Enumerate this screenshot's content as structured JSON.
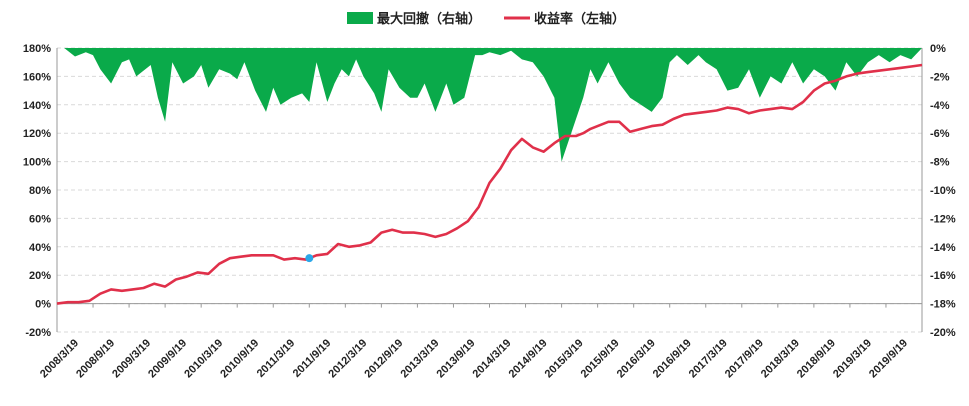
{
  "chart_data": {
    "type": "line+area",
    "legend": [
      {
        "name": "最大回撤（右轴）",
        "color": "#0AAA4A",
        "kind": "area"
      },
      {
        "name": "收益率（左轴）",
        "color": "#E0304A",
        "kind": "line"
      }
    ],
    "legend_position": "top-center",
    "grid": {
      "horizontal": true,
      "style": "dashed"
    },
    "left_axis": {
      "ylim": [
        -20,
        180
      ],
      "ticks": [
        "-20%",
        "0%",
        "20%",
        "40%",
        "60%",
        "80%",
        "100%",
        "120%",
        "140%",
        "160%",
        "180%"
      ]
    },
    "right_axis": {
      "ylim": [
        -20,
        0
      ],
      "ticks": [
        "0%",
        "-2%",
        "-4%",
        "-6%",
        "-8%",
        "-10%",
        "-12%",
        "-14%",
        "-16%",
        "-18%",
        "-20%"
      ]
    },
    "x_categories": [
      "2008/3/19",
      "2008/9/19",
      "2009/3/19",
      "2009/9/19",
      "2010/3/19",
      "2010/9/19",
      "2011/3/19",
      "2011/9/19",
      "2012/3/19",
      "2012/9/19",
      "2013/3/19",
      "2013/9/19",
      "2014/3/19",
      "2014/9/19",
      "2015/3/19",
      "2015/9/19",
      "2016/3/19",
      "2016/9/19",
      "2017/3/19",
      "2017/9/19",
      "2018/3/19",
      "2018/9/19",
      "2019/3/19",
      "2019/9/19"
    ],
    "return_series": {
      "name": "收益率（左轴）",
      "axis": "left",
      "x": [
        0,
        0.3,
        0.6,
        0.9,
        1.2,
        1.5,
        1.8,
        2.1,
        2.4,
        2.7,
        3.0,
        3.3,
        3.6,
        3.9,
        4.2,
        4.5,
        4.8,
        5.1,
        5.4,
        5.7,
        6.0,
        6.3,
        6.6,
        6.9,
        7.0,
        7.2,
        7.5,
        7.8,
        8.1,
        8.4,
        8.7,
        9.0,
        9.3,
        9.6,
        9.9,
        10.2,
        10.5,
        10.8,
        11.1,
        11.4,
        11.7,
        12.0,
        12.3,
        12.6,
        12.9,
        13.2,
        13.5,
        13.8,
        14.1,
        14.4,
        14.6,
        14.8,
        15.0,
        15.3,
        15.6,
        15.9,
        16.2,
        16.5,
        16.8,
        17.1,
        17.4,
        17.7,
        18.0,
        18.3,
        18.6,
        18.9,
        19.2,
        19.5,
        19.8,
        20.1,
        20.4,
        20.7,
        21.0,
        21.3,
        21.6,
        21.9,
        22.2,
        22.5,
        22.8,
        23.1,
        23.4,
        23.7,
        24.0
      ],
      "y": [
        0,
        1,
        1,
        2,
        7,
        10,
        9,
        10,
        11,
        14,
        12,
        17,
        19,
        22,
        21,
        28,
        32,
        33,
        34,
        34,
        34,
        31,
        32,
        31,
        32,
        34,
        35,
        42,
        40,
        41,
        43,
        50,
        52,
        50,
        50,
        49,
        47,
        49,
        53,
        58,
        68,
        85,
        95,
        108,
        116,
        110,
        107,
        113,
        118,
        118,
        120,
        123,
        125,
        128,
        128,
        121,
        123,
        125,
        126,
        130,
        133,
        134,
        135,
        136,
        138,
        137,
        134,
        136,
        137,
        138,
        137,
        142,
        150,
        155,
        157,
        160,
        162,
        163,
        164,
        165,
        166,
        167,
        168
      ]
    },
    "drawdown_series": {
      "name": "最大回撤（右轴）",
      "axis": "right",
      "x": [
        0,
        0.2,
        0.5,
        0.8,
        1.0,
        1.2,
        1.5,
        1.8,
        2.0,
        2.2,
        2.6,
        2.8,
        3.0,
        3.2,
        3.5,
        3.8,
        4.0,
        4.2,
        4.5,
        4.8,
        5.0,
        5.2,
        5.5,
        5.8,
        6.0,
        6.2,
        6.5,
        6.8,
        7.0,
        7.2,
        7.5,
        7.7,
        7.9,
        8.1,
        8.3,
        8.5,
        8.8,
        9.0,
        9.2,
        9.5,
        9.8,
        10.0,
        10.2,
        10.5,
        10.8,
        11.0,
        11.3,
        11.6,
        11.8,
        12.0,
        12.3,
        12.6,
        12.9,
        13.2,
        13.5,
        13.8,
        14.0,
        14.2,
        14.4,
        14.6,
        14.8,
        15.0,
        15.3,
        15.6,
        15.9,
        16.2,
        16.5,
        16.8,
        17.0,
        17.2,
        17.5,
        17.8,
        18.0,
        18.3,
        18.6,
        18.9,
        19.2,
        19.5,
        19.8,
        20.1,
        20.4,
        20.7,
        21.0,
        21.3,
        21.6,
        21.9,
        22.2,
        22.5,
        22.8,
        23.1,
        23.4,
        23.7,
        24.0
      ],
      "y": [
        0,
        0,
        -0.6,
        -0.3,
        -0.5,
        -1.5,
        -2.5,
        -1.0,
        -0.8,
        -2.0,
        -1.2,
        -3.5,
        -5.2,
        -1.0,
        -2.5,
        -2.0,
        -1.2,
        -2.8,
        -1.5,
        -1.8,
        -2.2,
        -1.0,
        -3.0,
        -4.5,
        -2.8,
        -4.0,
        -3.5,
        -3.2,
        -3.8,
        -1.0,
        -3.8,
        -2.5,
        -1.5,
        -2.0,
        -0.8,
        -2.0,
        -3.2,
        -4.5,
        -1.5,
        -2.8,
        -3.5,
        -3.5,
        -2.5,
        -4.5,
        -2.5,
        -4.0,
        -3.5,
        -0.5,
        -0.5,
        -0.3,
        -0.5,
        -0.2,
        -0.8,
        -1.0,
        -2.0,
        -3.5,
        -8.0,
        -6.5,
        -5.0,
        -3.5,
        -1.5,
        -2.5,
        -1.0,
        -2.5,
        -3.5,
        -4.0,
        -4.5,
        -3.5,
        -1.0,
        -0.5,
        -1.2,
        -0.5,
        -1.0,
        -1.5,
        -3.0,
        -2.8,
        -1.5,
        -3.5,
        -2.0,
        -2.5,
        -1.0,
        -2.5,
        -1.5,
        -2.0,
        -3.0,
        -1.0,
        -2.0,
        -1.0,
        -0.5,
        -1.0,
        -0.5,
        -0.8,
        0
      ]
    },
    "marker": {
      "x": 7.0,
      "y": 32,
      "color": "#2BA7E8"
    }
  }
}
